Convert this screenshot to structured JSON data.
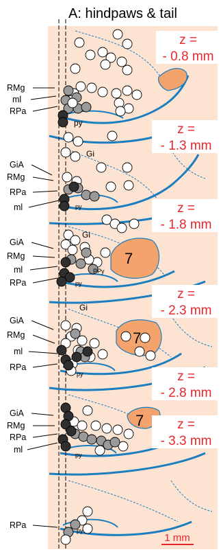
{
  "title": "A: hindpaws & tail",
  "sections": [
    {
      "z_line1": "z =",
      "z_line2": "- 0.8 mm",
      "labels": [
        "RMg",
        "ml",
        "RPa"
      ],
      "inner": [
        "py"
      ],
      "nucleus7": ""
    },
    {
      "z_line1": "z =",
      "z_line2": "- 1.3 mm",
      "labels": [
        "GiA",
        "RMg",
        "RPa",
        "ml"
      ],
      "inner": [
        "Gi",
        "py"
      ],
      "nucleus7": ""
    },
    {
      "z_line1": "z =",
      "z_line2": "- 1.8 mm",
      "labels": [
        "GiA",
        "RMg",
        "ml",
        "RPa"
      ],
      "inner": [
        "Gi",
        "py",
        "PPy"
      ],
      "nucleus7": "7"
    },
    {
      "z_line1": "z =",
      "z_line2": "- 2.3 mm",
      "labels": [
        "GiA",
        "RMg",
        "ml",
        "RPa"
      ],
      "inner": [
        "Gi",
        "py"
      ],
      "nucleus7": "7"
    },
    {
      "z_line1": "z =",
      "z_line2": "- 2.8 mm",
      "labels": [
        "GiA",
        "RMg",
        "RPa",
        "ml"
      ],
      "inner": [
        "py"
      ],
      "nucleus7": "7"
    },
    {
      "z_line1": "z =",
      "z_line2": "- 3.3 mm",
      "labels": [
        "RPa"
      ],
      "inner": [
        "py"
      ],
      "nucleus7": ""
    }
  ],
  "scale_bar": "1 mm",
  "colors": {
    "tissue": "#fde3d2",
    "outline": "#1a7ec0",
    "nucleus": "#f3a36b",
    "z_text": "#e8262b",
    "cell_white": "#ffffff",
    "cell_gray": "#9a9a9a",
    "cell_dark": "#2f2f2f"
  }
}
